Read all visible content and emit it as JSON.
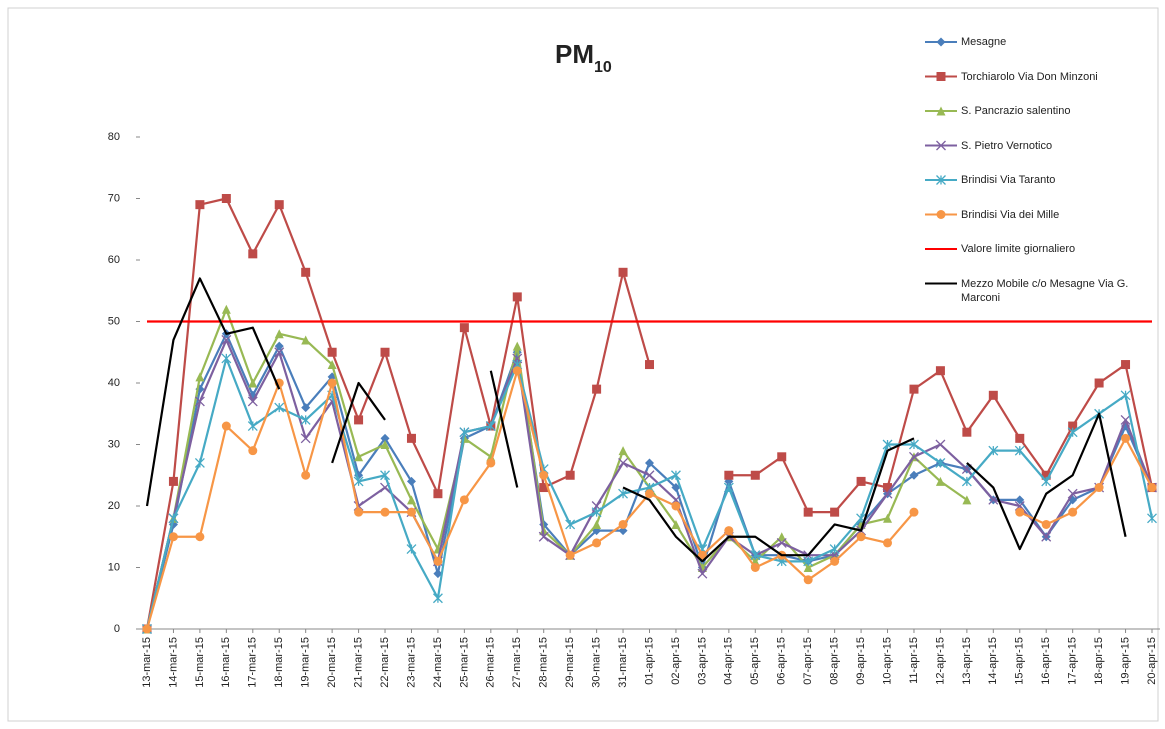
{
  "chart_data": {
    "type": "line",
    "title": "PM",
    "title_subscript": "10",
    "categories": [
      "13-mar-15",
      "14-mar-15",
      "15-mar-15",
      "16-mar-15",
      "17-mar-15",
      "18-mar-15",
      "19-mar-15",
      "20-mar-15",
      "21-mar-15",
      "22-mar-15",
      "23-mar-15",
      "24-mar-15",
      "25-mar-15",
      "26-mar-15",
      "27-mar-15",
      "28-mar-15",
      "29-mar-15",
      "30-mar-15",
      "31-mar-15",
      "01-apr-15",
      "02-apr-15",
      "03-apr-15",
      "04-apr-15",
      "05-apr-15",
      "06-apr-15",
      "07-apr-15",
      "08-apr-15",
      "09-apr-15",
      "10-apr-15",
      "11-apr-15",
      "12-apr-15",
      "13-apr-15",
      "14-apr-15",
      "15-apr-15",
      "16-apr-15",
      "17-apr-15",
      "18-apr-15",
      "19-apr-15",
      "20-apr-15"
    ],
    "ylim": [
      0,
      80
    ],
    "yticks": [
      0,
      10,
      20,
      30,
      40,
      50,
      60,
      70,
      80
    ],
    "grid": false,
    "series": [
      {
        "name": "Mesagne",
        "color": "#4a7ebb",
        "marker": "diamond",
        "values": [
          0,
          17,
          39,
          48,
          38,
          46,
          36,
          41,
          25,
          31,
          24,
          9,
          31,
          33,
          45,
          17,
          12,
          16,
          16,
          27,
          23,
          10,
          24,
          12,
          12,
          11,
          12,
          17,
          22,
          25,
          27,
          26,
          21,
          21,
          15,
          21,
          23,
          33,
          23
        ]
      },
      {
        "name": "Torchiarolo Via Don Minzoni",
        "color": "#be4b48",
        "marker": "square",
        "values": [
          0,
          24,
          69,
          70,
          61,
          69,
          58,
          45,
          34,
          45,
          31,
          22,
          49,
          33,
          54,
          23,
          25,
          39,
          58,
          43,
          null,
          null,
          25,
          25,
          28,
          19,
          19,
          24,
          23,
          39,
          42,
          32,
          38,
          31,
          25,
          33,
          40,
          43,
          23
        ]
      },
      {
        "name": "S. Pancrazio salentino",
        "color": "#98b954",
        "marker": "triangle",
        "values": [
          0,
          18,
          41,
          52,
          40,
          48,
          47,
          43,
          28,
          30,
          21,
          13,
          31,
          28,
          46,
          16,
          12,
          17,
          29,
          23,
          17,
          10,
          15,
          11,
          15,
          10,
          12,
          17,
          18,
          28,
          24,
          21,
          null,
          null,
          null,
          null,
          null,
          null,
          null
        ]
      },
      {
        "name": "S. Pietro  Vernotico",
        "color": "#7d60a0",
        "marker": "x",
        "values": [
          0,
          18,
          37,
          47,
          37,
          45,
          31,
          37,
          20,
          23,
          19,
          11,
          32,
          33,
          44,
          15,
          12,
          20,
          27,
          25,
          21,
          9,
          15,
          12,
          14,
          12,
          12,
          16,
          22,
          28,
          30,
          26,
          21,
          20,
          15,
          22,
          23,
          34,
          23
        ]
      },
      {
        "name": "Brindisi Via Taranto",
        "color": "#46aac5",
        "marker": "star",
        "values": [
          0,
          18,
          27,
          44,
          33,
          36,
          34,
          38,
          24,
          25,
          13,
          5,
          32,
          33,
          43,
          26,
          17,
          19,
          22,
          23,
          25,
          13,
          23,
          12,
          11,
          11,
          13,
          18,
          30,
          30,
          27,
          24,
          29,
          29,
          24,
          32,
          35,
          38,
          18
        ]
      },
      {
        "name": "Brindisi Via dei Mille",
        "color": "#f79646",
        "marker": "circle",
        "values": [
          0,
          15,
          15,
          33,
          29,
          40,
          25,
          40,
          19,
          19,
          19,
          11,
          21,
          27,
          42,
          25,
          12,
          14,
          17,
          22,
          20,
          12,
          16,
          10,
          12,
          8,
          11,
          15,
          14,
          19,
          null,
          null,
          null,
          19,
          17,
          19,
          23,
          31,
          23
        ]
      },
      {
        "name": "Valore limite giornaliero",
        "color": "#ff0000",
        "marker": "none",
        "values": [
          50,
          50,
          50,
          50,
          50,
          50,
          50,
          50,
          50,
          50,
          50,
          50,
          50,
          50,
          50,
          50,
          50,
          50,
          50,
          50,
          50,
          50,
          50,
          50,
          50,
          50,
          50,
          50,
          50,
          50,
          50,
          50,
          50,
          50,
          50,
          50,
          50,
          50,
          50
        ]
      },
      {
        "name": "Mezzo Mobile c/o Mesagne Via G. Marconi",
        "color": "#000000",
        "marker": "none",
        "values": [
          20,
          47,
          57,
          48,
          49,
          39,
          null,
          27,
          40,
          34,
          null,
          null,
          null,
          42,
          23,
          null,
          null,
          null,
          23,
          21,
          15,
          11,
          15,
          15,
          12,
          12,
          17,
          16,
          29,
          31,
          null,
          27,
          23,
          13,
          22,
          25,
          35,
          15,
          null
        ]
      }
    ]
  }
}
